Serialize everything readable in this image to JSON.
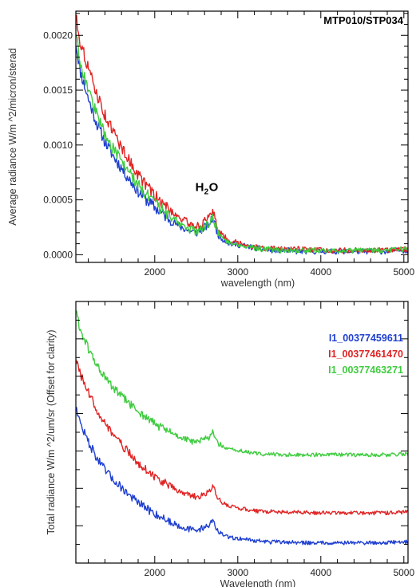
{
  "chart_data": [
    {
      "type": "line",
      "title": "MTP010/STP034",
      "xlabel": "wavelength (nm)",
      "ylabel": "Average radiance W/m ^2/micron/sterad",
      "xlim": [
        1050,
        5050
      ],
      "ylim": [
        -7e-05,
        0.00222
      ],
      "x_ticks": [
        2000,
        3000,
        4000,
        5000
      ],
      "y_ticks": [
        0.0,
        0.0005,
        0.001,
        0.0015,
        0.002
      ],
      "y_tick_labels": [
        "0.0000",
        "0.0005",
        "0.0010",
        "0.0015",
        "0.0020"
      ],
      "annotation": {
        "text": "H",
        "subscript": "2",
        "suffix": "O",
        "x": 2700,
        "y": 0.00058
      },
      "colors": {
        "blue": "#1f3fd0",
        "red": "#e02424",
        "green": "#3fcc3f"
      },
      "x": [
        1050,
        1100,
        1200,
        1300,
        1400,
        1500,
        1600,
        1700,
        1800,
        1900,
        2000,
        2100,
        2200,
        2300,
        2400,
        2500,
        2550,
        2600,
        2650,
        2700,
        2750,
        2800,
        2900,
        3000,
        3100,
        3200,
        3300,
        3400,
        3500,
        3600,
        3700,
        3800,
        3900,
        4000,
        4100,
        4200,
        4300,
        4400,
        4500,
        4600,
        4700,
        4800,
        4900,
        5000,
        5050
      ],
      "series": [
        {
          "color_key": "blue",
          "values": [
            0.00193,
            0.00168,
            0.00142,
            0.0012,
            0.00103,
            0.0009,
            0.00079,
            0.00068,
            0.00058,
            0.0005,
            0.00043,
            0.00037,
            0.00031,
            0.00026,
            0.00022,
            0.0002,
            0.00022,
            0.00025,
            0.00027,
            0.00034,
            0.00021,
            0.00015,
            0.0001,
            9e-05,
            8e-05,
            6e-05,
            5e-05,
            4e-05,
            4e-05,
            4e-05,
            3e-05,
            3e-05,
            3e-05,
            3e-05,
            3e-05,
            3e-05,
            3e-05,
            3e-05,
            3e-05,
            3e-05,
            3e-05,
            3e-05,
            4e-05,
            4e-05,
            4e-05
          ]
        },
        {
          "color_key": "red",
          "values": [
            0.00218,
            0.00195,
            0.0017,
            0.00147,
            0.00127,
            0.00112,
            0.00098,
            0.00085,
            0.00073,
            0.00063,
            0.00054,
            0.00046,
            0.0004,
            0.00034,
            0.00029,
            0.00026,
            0.00027,
            0.0003,
            0.00033,
            0.00041,
            0.00026,
            0.00019,
            0.00013,
            0.00011,
            9e-05,
            7e-05,
            6e-05,
            6e-05,
            5e-05,
            5e-05,
            5e-05,
            5e-05,
            4e-05,
            4e-05,
            4e-05,
            4e-05,
            4e-05,
            4e-05,
            4e-05,
            4e-05,
            4e-05,
            4e-05,
            5e-05,
            5e-05,
            5e-05
          ]
        },
        {
          "color_key": "green",
          "values": [
            0.00203,
            0.00177,
            0.0015,
            0.00128,
            0.0011,
            0.00096,
            0.00085,
            0.00074,
            0.00064,
            0.00055,
            0.00047,
            0.0004,
            0.00034,
            0.00029,
            0.00024,
            0.00021,
            0.00023,
            0.00026,
            0.00028,
            0.00036,
            0.00022,
            0.00016,
            0.00011,
            0.0001,
            8e-05,
            6e-05,
            5e-05,
            5e-05,
            4e-05,
            4e-05,
            4e-05,
            4e-05,
            4e-05,
            4e-05,
            4e-05,
            4e-05,
            4e-05,
            4e-05,
            4e-05,
            4e-05,
            4e-05,
            4e-05,
            5e-05,
            5e-05,
            5e-05
          ]
        }
      ]
    },
    {
      "type": "line",
      "title": "",
      "xlabel": "Wavelength (nm)",
      "ylabel": "Total radiance W/m ^2/um/sr (Offset for clarity)",
      "xlim": [
        1050,
        5050
      ],
      "ylim": [
        -0.00025,
        0.00335
      ],
      "x_ticks": [
        2000,
        3000,
        4000,
        5000
      ],
      "y_tick_labels": [],
      "colors": {
        "blue": "#1f3fd0",
        "red": "#e02424",
        "green": "#3fcc3f"
      },
      "x": [
        1050,
        1100,
        1200,
        1300,
        1400,
        1500,
        1600,
        1700,
        1800,
        1900,
        2000,
        2100,
        2200,
        2300,
        2400,
        2500,
        2550,
        2600,
        2650,
        2700,
        2750,
        2800,
        2900,
        3000,
        3100,
        3200,
        3300,
        3400,
        3500,
        3600,
        3700,
        3800,
        3900,
        4000,
        4100,
        4200,
        4300,
        4400,
        4500,
        4600,
        4700,
        4800,
        4900,
        5000,
        5050
      ],
      "series": [
        {
          "name": "I1_00377459611",
          "color_key": "blue",
          "values": [
            0.00193,
            0.00168,
            0.00142,
            0.0012,
            0.00103,
            0.0009,
            0.00079,
            0.00068,
            0.00058,
            0.0005,
            0.00043,
            0.00037,
            0.00031,
            0.00026,
            0.00022,
            0.0002,
            0.00022,
            0.00025,
            0.00027,
            0.00034,
            0.00021,
            0.00015,
            0.0001,
            9e-05,
            8e-05,
            6e-05,
            5e-05,
            4e-05,
            4e-05,
            4e-05,
            3e-05,
            3e-05,
            3e-05,
            3e-05,
            3e-05,
            3e-05,
            3e-05,
            3e-05,
            3e-05,
            3e-05,
            3e-05,
            3e-05,
            4e-05,
            4e-05,
            4e-05
          ]
        },
        {
          "name": "I1_00377461470",
          "color_key": "red",
          "values": [
            0.00258,
            0.00235,
            0.0021,
            0.00187,
            0.00167,
            0.00152,
            0.00138,
            0.00125,
            0.00113,
            0.00103,
            0.00094,
            0.00086,
            0.0008,
            0.00074,
            0.00069,
            0.00066,
            0.00067,
            0.0007,
            0.00073,
            0.00081,
            0.00066,
            0.00059,
            0.00053,
            0.00051,
            0.00049,
            0.00047,
            0.00046,
            0.00046,
            0.00045,
            0.00045,
            0.00045,
            0.00045,
            0.00044,
            0.00044,
            0.00044,
            0.00044,
            0.00044,
            0.00044,
            0.00044,
            0.00044,
            0.00044,
            0.00044,
            0.00045,
            0.00045,
            0.00045
          ]
        },
        {
          "name": "I1_00377463271",
          "color_key": "green",
          "values": [
            0.00323,
            0.00297,
            0.0027,
            0.00248,
            0.0023,
            0.00216,
            0.00205,
            0.00194,
            0.00184,
            0.00175,
            0.00167,
            0.0016,
            0.00154,
            0.00149,
            0.00144,
            0.00141,
            0.00143,
            0.00146,
            0.00148,
            0.00156,
            0.00142,
            0.00136,
            0.00131,
            0.0013,
            0.00128,
            0.00126,
            0.00125,
            0.00125,
            0.00124,
            0.00124,
            0.00124,
            0.00124,
            0.00124,
            0.00124,
            0.00124,
            0.00124,
            0.00124,
            0.00124,
            0.00124,
            0.00124,
            0.00124,
            0.00124,
            0.00125,
            0.00125,
            0.00125
          ]
        }
      ],
      "legend": "top-right"
    }
  ]
}
